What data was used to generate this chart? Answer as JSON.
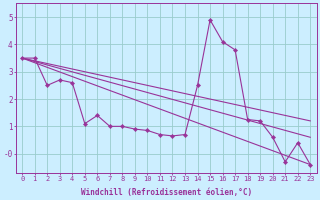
{
  "xlabel": "Windchill (Refroidissement éolien,°C)",
  "bg_color": "#cceeff",
  "line_color": "#993399",
  "grid_color": "#99cccc",
  "xlim": [
    -0.5,
    23.5
  ],
  "ylim": [
    -0.7,
    5.5
  ],
  "xticks": [
    0,
    1,
    2,
    3,
    4,
    5,
    6,
    7,
    8,
    9,
    10,
    11,
    12,
    13,
    14,
    15,
    16,
    17,
    18,
    19,
    20,
    21,
    22,
    23
  ],
  "yticks": [
    0,
    1,
    2,
    3,
    4,
    5
  ],
  "ytick_labels": [
    "-0",
    "1",
    "2",
    "3",
    "4",
    "5"
  ],
  "series_x": [
    0,
    1,
    2,
    3,
    4,
    5,
    6,
    7,
    8,
    9,
    10,
    11,
    12,
    13,
    14,
    15,
    16,
    17,
    18,
    19,
    20,
    21,
    22,
    23
  ],
  "series_y": [
    3.5,
    3.5,
    2.5,
    2.7,
    2.6,
    1.1,
    1.4,
    1.0,
    1.0,
    0.9,
    0.85,
    0.7,
    0.65,
    0.7,
    2.5,
    4.9,
    4.1,
    3.8,
    1.25,
    1.2,
    0.6,
    -0.3,
    0.4,
    -0.4
  ],
  "linear_lines": [
    {
      "x0": 0,
      "y0": 3.5,
      "x1": 23,
      "y1": 1.2
    },
    {
      "x0": 0,
      "y0": 3.5,
      "x1": 23,
      "y1": 0.6
    },
    {
      "x0": 0,
      "y0": 3.5,
      "x1": 23,
      "y1": -0.4
    }
  ],
  "tick_fontsize": 5,
  "xlabel_fontsize": 5.5
}
